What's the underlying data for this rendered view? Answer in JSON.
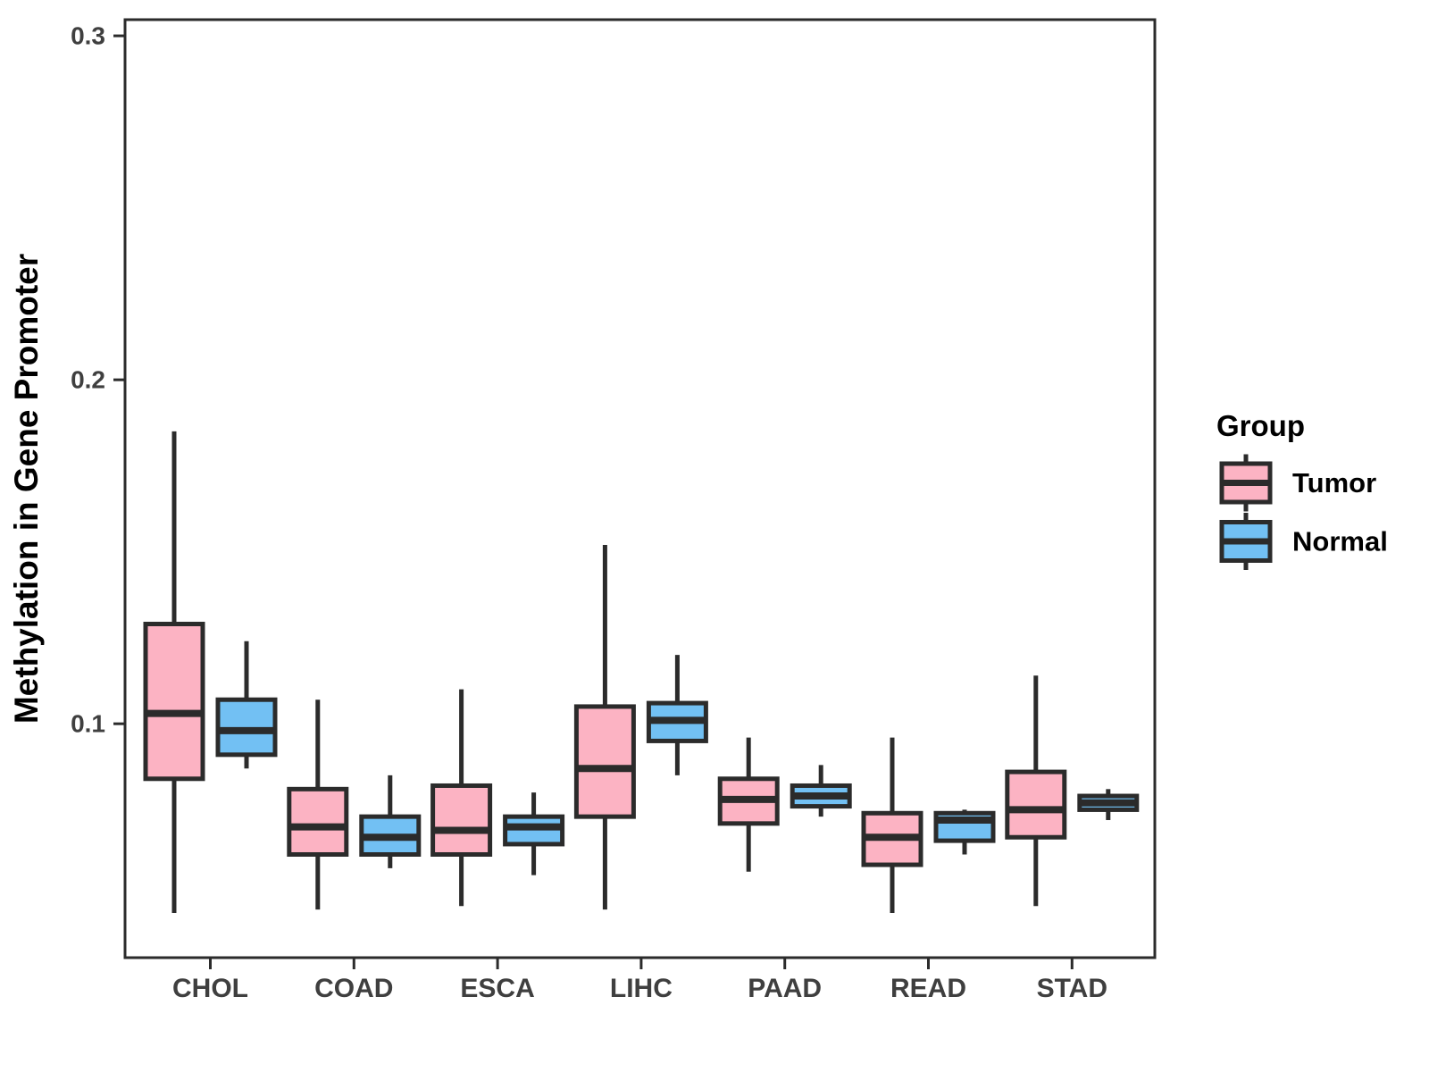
{
  "figure": {
    "background": "#ffffff"
  },
  "chart_data": {
    "type": "boxplot",
    "title": "",
    "xlabel": "",
    "ylabel": "Methylation in Gene Promoter",
    "categories": [
      "CHOL",
      "COAD",
      "ESCA",
      "LIHC",
      "PAAD",
      "READ",
      "STAD"
    ],
    "yticks": [
      0.3,
      0.2,
      0.1
    ],
    "ytick_labels": [
      "0.3",
      "0.2",
      "0.1"
    ],
    "ylim": [
      0.032,
      0.3047
    ],
    "grid": false,
    "legend": {
      "title": "Group",
      "position": "right",
      "entries": [
        "Tumor",
        "Normal"
      ]
    },
    "colors": {
      "tumor_fill": "#FCB3C3",
      "normal_fill": "#72C0F3",
      "stroke": "#2b2b2b",
      "axis_text": "#3f3f3f",
      "title_text": "#000000"
    },
    "series": [
      {
        "name": "Tumor",
        "fill": "#FCB3C3",
        "boxes": [
          {
            "category": "CHOL",
            "whisker_low": 0.045,
            "q1": 0.084,
            "median": 0.103,
            "q3": 0.129,
            "whisker_high": 0.185
          },
          {
            "category": "COAD",
            "whisker_low": 0.046,
            "q1": 0.062,
            "median": 0.07,
            "q3": 0.081,
            "whisker_high": 0.107
          },
          {
            "category": "ESCA",
            "whisker_low": 0.047,
            "q1": 0.062,
            "median": 0.069,
            "q3": 0.082,
            "whisker_high": 0.11
          },
          {
            "category": "LIHC",
            "whisker_low": 0.046,
            "q1": 0.073,
            "median": 0.087,
            "q3": 0.105,
            "whisker_high": 0.152
          },
          {
            "category": "PAAD",
            "whisker_low": 0.057,
            "q1": 0.071,
            "median": 0.078,
            "q3": 0.084,
            "whisker_high": 0.096
          },
          {
            "category": "READ",
            "whisker_low": 0.045,
            "q1": 0.059,
            "median": 0.067,
            "q3": 0.074,
            "whisker_high": 0.096
          },
          {
            "category": "STAD",
            "whisker_low": 0.047,
            "q1": 0.067,
            "median": 0.075,
            "q3": 0.086,
            "whisker_high": 0.114
          }
        ]
      },
      {
        "name": "Normal",
        "fill": "#72C0F3",
        "boxes": [
          {
            "category": "CHOL",
            "whisker_low": 0.087,
            "q1": 0.091,
            "median": 0.098,
            "q3": 0.107,
            "whisker_high": 0.124
          },
          {
            "category": "COAD",
            "whisker_low": 0.058,
            "q1": 0.062,
            "median": 0.067,
            "q3": 0.073,
            "whisker_high": 0.085
          },
          {
            "category": "ESCA",
            "whisker_low": 0.056,
            "q1": 0.065,
            "median": 0.07,
            "q3": 0.073,
            "whisker_high": 0.08
          },
          {
            "category": "LIHC",
            "whisker_low": 0.085,
            "q1": 0.095,
            "median": 0.101,
            "q3": 0.106,
            "whisker_high": 0.12
          },
          {
            "category": "PAAD",
            "whisker_low": 0.073,
            "q1": 0.076,
            "median": 0.079,
            "q3": 0.082,
            "whisker_high": 0.088
          },
          {
            "category": "READ",
            "whisker_low": 0.062,
            "q1": 0.066,
            "median": 0.072,
            "q3": 0.074,
            "whisker_high": 0.075
          },
          {
            "category": "STAD",
            "whisker_low": 0.072,
            "q1": 0.075,
            "median": 0.077,
            "q3": 0.079,
            "whisker_high": 0.081
          }
        ]
      }
    ]
  }
}
